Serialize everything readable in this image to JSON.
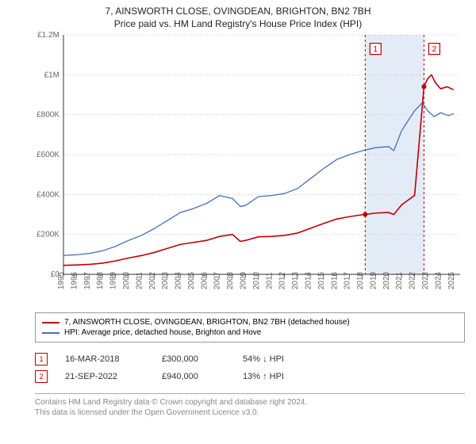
{
  "title": {
    "line1": "7, AINSWORTH CLOSE, OVINGDEAN, BRIGHTON, BN2 7BH",
    "line2": "Price paid vs. HM Land Registry's House Price Index (HPI)"
  },
  "title_fontsize": 12,
  "chart": {
    "type": "line",
    "background_color": "#ffffff",
    "grid_color": "#bbbbbb",
    "axis_color": "#333333",
    "x": {
      "min": 1995,
      "max": 2025.5,
      "ticks": [
        1995,
        1996,
        1997,
        1998,
        1999,
        2000,
        2001,
        2002,
        2003,
        2004,
        2005,
        2006,
        2007,
        2008,
        2009,
        2010,
        2011,
        2012,
        2013,
        2014,
        2015,
        2016,
        2017,
        2018,
        2019,
        2020,
        2021,
        2022,
        2023,
        2024,
        2025
      ],
      "tick_fontsize": 10,
      "rotation": -90
    },
    "y": {
      "min": 0,
      "max": 1200000,
      "ticks": [
        0,
        200000,
        400000,
        600000,
        800000,
        1000000,
        1200000
      ],
      "labels": [
        "£0",
        "£200K",
        "£400K",
        "£600K",
        "£800K",
        "£1M",
        "£1.2M"
      ],
      "tick_fontsize": 10
    },
    "band": {
      "from": 2018.2,
      "to": 2022.72,
      "color": "#c7d7ee"
    },
    "markers_vlines_color": "#c00000",
    "series": [
      {
        "key": "hpi",
        "label": "HPI: Average price, detached house, Brighton and Hove",
        "color": "#4a6fb3",
        "width": 1.3,
        "points": [
          [
            1995,
            95000
          ],
          [
            1996,
            98000
          ],
          [
            1997,
            105000
          ],
          [
            1998,
            118000
          ],
          [
            1999,
            140000
          ],
          [
            2000,
            170000
          ],
          [
            2001,
            195000
          ],
          [
            2002,
            230000
          ],
          [
            2003,
            270000
          ],
          [
            2004,
            310000
          ],
          [
            2005,
            330000
          ],
          [
            2006,
            355000
          ],
          [
            2007,
            395000
          ],
          [
            2008,
            380000
          ],
          [
            2008.6,
            340000
          ],
          [
            2009,
            345000
          ],
          [
            2010,
            390000
          ],
          [
            2011,
            395000
          ],
          [
            2012,
            405000
          ],
          [
            2013,
            430000
          ],
          [
            2014,
            480000
          ],
          [
            2015,
            530000
          ],
          [
            2016,
            575000
          ],
          [
            2017,
            600000
          ],
          [
            2018,
            620000
          ],
          [
            2019,
            635000
          ],
          [
            2020,
            640000
          ],
          [
            2020.4,
            620000
          ],
          [
            2021,
            720000
          ],
          [
            2022,
            820000
          ],
          [
            2022.6,
            860000
          ],
          [
            2023,
            820000
          ],
          [
            2023.5,
            790000
          ],
          [
            2024,
            810000
          ],
          [
            2024.6,
            795000
          ],
          [
            2025,
            805000
          ]
        ]
      },
      {
        "key": "property",
        "label": "7, AINSWORTH CLOSE, OVINGDEAN, BRIGHTON, BN2 7BH (detached house)",
        "color": "#c00000",
        "width": 1.6,
        "points": [
          [
            1995,
            45000
          ],
          [
            1996,
            47000
          ],
          [
            1997,
            50000
          ],
          [
            1998,
            56000
          ],
          [
            1999,
            67000
          ],
          [
            2000,
            82000
          ],
          [
            2001,
            94000
          ],
          [
            2002,
            110000
          ],
          [
            2003,
            130000
          ],
          [
            2004,
            150000
          ],
          [
            2005,
            160000
          ],
          [
            2006,
            170000
          ],
          [
            2007,
            190000
          ],
          [
            2008,
            200000
          ],
          [
            2008.6,
            165000
          ],
          [
            2009,
            170000
          ],
          [
            2010,
            188000
          ],
          [
            2011,
            190000
          ],
          [
            2012,
            195000
          ],
          [
            2013,
            207000
          ],
          [
            2014,
            231000
          ],
          [
            2015,
            255000
          ],
          [
            2016,
            277000
          ],
          [
            2017,
            289000
          ],
          [
            2018,
            299000
          ],
          [
            2018.2,
            300000
          ],
          [
            2019,
            307000
          ],
          [
            2020,
            310000
          ],
          [
            2020.4,
            300000
          ],
          [
            2021,
            348000
          ],
          [
            2022,
            396000
          ],
          [
            2022.72,
            940000
          ],
          [
            2023,
            980000
          ],
          [
            2023.3,
            1000000
          ],
          [
            2023.6,
            960000
          ],
          [
            2024,
            930000
          ],
          [
            2024.5,
            940000
          ],
          [
            2025,
            925000
          ]
        ]
      }
    ],
    "sale_markers": [
      {
        "n": "1",
        "x": 2018.2,
        "y": 300000,
        "box_y_value": 1130000,
        "color": "#c00000"
      },
      {
        "n": "2",
        "x": 2022.72,
        "y": 940000,
        "box_y_value": 1130000,
        "color": "#c00000"
      }
    ],
    "dot_radius": 3
  },
  "legend": {
    "border_color": "#999999",
    "rows": [
      {
        "color": "#c00000",
        "label": "7, AINSWORTH CLOSE, OVINGDEAN, BRIGHTON, BN2 7BH (detached house)"
      },
      {
        "color": "#4a6fb3",
        "label": "HPI: Average price, detached house, Brighton and Hove"
      }
    ]
  },
  "sales": [
    {
      "n": "1",
      "color": "#c00000",
      "date": "16-MAR-2018",
      "price": "£300,000",
      "diff_pct": "54%",
      "diff_dir": "down",
      "diff_label": "HPI"
    },
    {
      "n": "2",
      "color": "#c00000",
      "date": "21-SEP-2022",
      "price": "£940,000",
      "diff_pct": "13%",
      "diff_dir": "up",
      "diff_label": "HPI"
    }
  ],
  "arrows": {
    "up": "↑",
    "down": "↓"
  },
  "footer": {
    "line1": "Contains HM Land Registry data © Crown copyright and database right 2024.",
    "line2": "This data is licensed under the Open Government Licence v3.0."
  }
}
